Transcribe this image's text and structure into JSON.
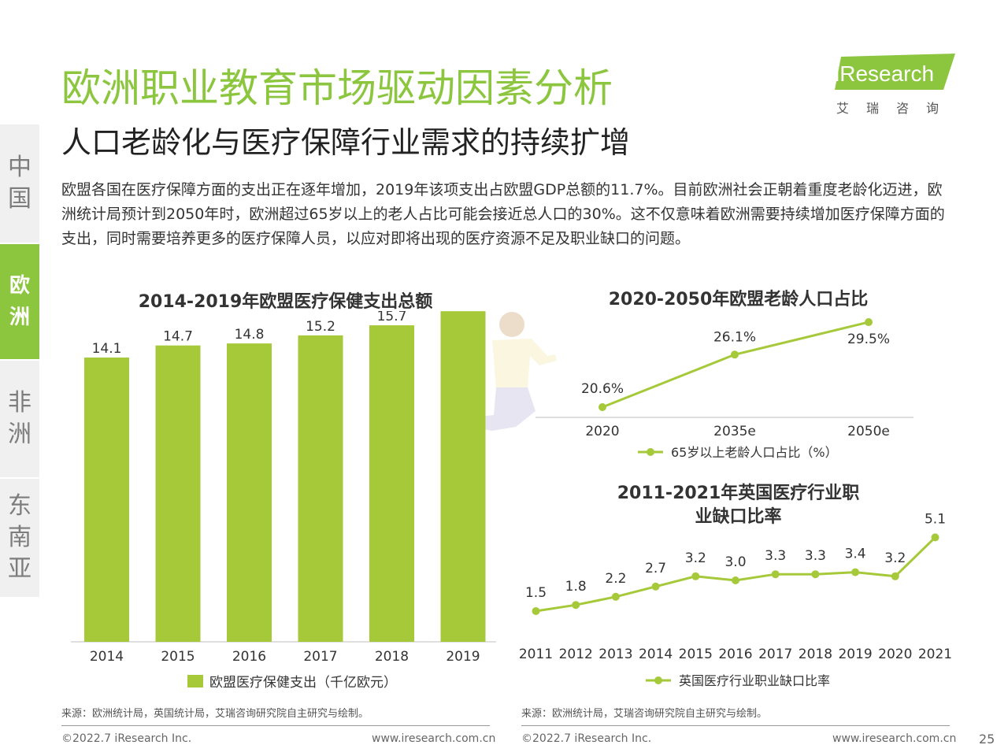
{
  "header": {
    "title": "欧洲职业教育市场驱动因素分析",
    "subtitle": "人口老龄化与医疗保障行业需求的持续扩增",
    "description": "欧盟各国在医疗保障方面的支出正在逐年增加，2019年该项支出占欧盟GDP总额的11.7%。目前欧洲社会正朝着重度老龄化迈进，欧洲统计局预计到2050年时，欧洲超过65岁以上的老人占比可能会接近总人口的30%。这不仅意味着欧洲需要持续增加医疗保障方面的支出，同时需要培养更多的医疗保障人员，以应对即将出现的医疗资源不足及职业缺口的问题。"
  },
  "logo": {
    "text": "iResearch",
    "sub": "艾瑞咨询"
  },
  "nav": [
    {
      "label": "中国",
      "active": false
    },
    {
      "label": "欧洲",
      "active": true
    },
    {
      "label": "非洲",
      "active": false
    },
    {
      "label": "东南亚",
      "active": false
    }
  ],
  "colors": {
    "accent": "#8cc63f",
    "bar": "#a6c93a",
    "line": "#a6c93a"
  },
  "chart_data": [
    {
      "type": "bar",
      "title": "2014-2019年欧盟医疗保健支出总额",
      "categories": [
        "2014",
        "2015",
        "2016",
        "2017",
        "2018",
        "2019"
      ],
      "values": [
        14.1,
        14.7,
        14.8,
        15.2,
        15.7,
        16.4
      ],
      "legend": "欧盟医疗保健支出（千亿欧元）",
      "legend_position": "bottom"
    },
    {
      "type": "line",
      "title": "2020-2050年欧盟老龄人口占比",
      "categories": [
        "2020",
        "2035e",
        "2050e"
      ],
      "values": [
        20.6,
        26.1,
        29.5
      ],
      "labels": [
        "20.6%",
        "26.1%",
        "29.5%"
      ],
      "legend": "65岁以上老龄人口占比（%）",
      "legend_position": "bottom"
    },
    {
      "type": "line",
      "title": "2011-2021年英国医疗行业职业缺口比率",
      "title_lines": [
        "2011-2021年英国医疗行业职",
        "业缺口比率"
      ],
      "categories": [
        "2011",
        "2012",
        "2013",
        "2014",
        "2015",
        "2016",
        "2017",
        "2018",
        "2019",
        "2020",
        "2021"
      ],
      "values": [
        1.5,
        1.8,
        2.2,
        2.7,
        3.2,
        3.0,
        3.3,
        3.3,
        3.4,
        3.2,
        5.1
      ],
      "legend": "英国医疗行业职业缺口比率",
      "legend_position": "bottom"
    }
  ],
  "footer": {
    "source_left": "来源：欧洲统计局，英国统计局，艾瑞咨询研究院自主研究与绘制。",
    "source_right": "来源：欧洲统计局，艾瑞咨询研究院自主研究与绘制。",
    "copyright_left": "©2022.7 iResearch Inc.",
    "url_left": "www.iresearch.com.cn",
    "copyright_right": "©2022.7 iResearch Inc.",
    "url_right": "www.iresearch.com.cn",
    "page_number": "25"
  }
}
